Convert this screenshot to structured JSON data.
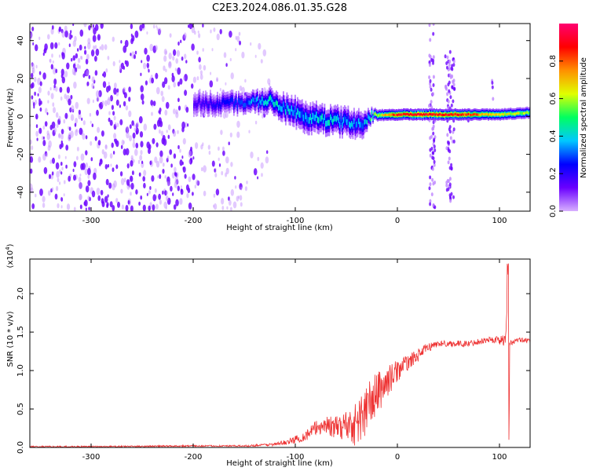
{
  "title": "C2E3.2024.086.01.35.G28",
  "chart_data": [
    {
      "type": "heatmap",
      "title": "C2E3.2024.086.01.35.G28",
      "xlabel": "Height of straight line (km)",
      "ylabel": "Frequency (Hz)",
      "xlim": [
        -360,
        130
      ],
      "ylim": [
        -50,
        49
      ],
      "x_ticks": [
        -300,
        -200,
        -100,
        0,
        100
      ],
      "y_ticks": [
        -40,
        -20,
        0,
        20,
        40
      ],
      "colorbar": {
        "label": "Normalized spectral amplitude",
        "range": [
          0.0,
          1.0
        ],
        "ticks": [
          "0.0",
          "0.2",
          "0.4",
          "0.6",
          "0.8"
        ],
        "colormap": [
          "#d8b0ff",
          "#6a00ff",
          "#0000ff",
          "#00c8ff",
          "#00ff60",
          "#e0ff00",
          "#ff9000",
          "#ff0000",
          "#ff0070"
        ]
      },
      "regions": [
        {
          "x": [
            -360,
            -200
          ],
          "freq_spread": 49,
          "amplitude": 0.05,
          "description_type": "noise"
        },
        {
          "x": [
            -200,
            -150
          ],
          "freq_spread": 49,
          "amplitude": 0.03
        },
        {
          "x": [
            -150,
            -125
          ],
          "freq_spread": 40,
          "amplitude": 0.02
        }
      ],
      "ridge": [
        {
          "x": -200,
          "center": 7,
          "width": 6,
          "peak": 0.15
        },
        {
          "x": -150,
          "center": 7,
          "width": 5,
          "peak": 0.3
        },
        {
          "x": -125,
          "center": 8,
          "width": 6,
          "peak": 0.4
        },
        {
          "x": -110,
          "center": 4,
          "width": 7,
          "peak": 0.35
        },
        {
          "x": -90,
          "center": 0,
          "width": 8,
          "peak": 0.35
        },
        {
          "x": -70,
          "center": -2,
          "width": 7,
          "peak": 0.4
        },
        {
          "x": -50,
          "center": -3,
          "width": 7,
          "peak": 0.35
        },
        {
          "x": -35,
          "center": -4,
          "width": 7,
          "peak": 0.3
        },
        {
          "x": -25,
          "center": 0.5,
          "width": 3,
          "peak": 0.5
        },
        {
          "x": 0,
          "center": 1,
          "width": 3,
          "peak": 0.85
        },
        {
          "x": 30,
          "center": 1,
          "width": 3,
          "peak": 0.9
        },
        {
          "x": 60,
          "center": 1,
          "width": 3,
          "peak": 0.85
        },
        {
          "x": 100,
          "center": 1,
          "width": 3,
          "peak": 0.65
        },
        {
          "x": 130,
          "center": 2,
          "width": 3,
          "peak": 0.55
        }
      ],
      "bursts": [
        {
          "x": [
            31,
            37
          ],
          "freq": [
            -48,
            49
          ]
        },
        {
          "x": [
            47,
            56
          ],
          "freq": [
            -45,
            35
          ]
        },
        {
          "x": [
            68,
            70
          ],
          "freq": [
            -3,
            8
          ]
        },
        {
          "x": [
            92,
            94
          ],
          "freq": [
            -3,
            20
          ]
        }
      ]
    },
    {
      "type": "line",
      "xlabel": "Height of straight line (km)",
      "ylabel": "SNR (10 * v/v)",
      "y_multiplier": "(x10^4)",
      "xlim": [
        -360,
        130
      ],
      "ylim": [
        0,
        2.45
      ],
      "x_ticks": [
        -300,
        -200,
        -100,
        0,
        100
      ],
      "y_ticks": [
        "0.0",
        "0.5",
        "1.0",
        "1.5",
        "2.0"
      ],
      "series": [
        {
          "color": "#ee3333",
          "x": [
            -360,
            -300,
            -200,
            -150,
            -120,
            -105,
            -90,
            -80,
            -70,
            -60,
            -50,
            -40,
            -30,
            -20,
            -10,
            0,
            10,
            20,
            30,
            40,
            50,
            60,
            70,
            80,
            90,
            100,
            105,
            107,
            108,
            109,
            110,
            115,
            120,
            130
          ],
          "y": [
            0.01,
            0.01,
            0.02,
            0.02,
            0.04,
            0.08,
            0.15,
            0.25,
            0.3,
            0.25,
            0.3,
            0.3,
            0.5,
            0.7,
            0.85,
            1.0,
            1.1,
            1.2,
            1.3,
            1.35,
            1.35,
            1.35,
            1.35,
            1.38,
            1.4,
            1.4,
            1.38,
            1.6,
            2.45,
            0.5,
            1.35,
            1.38,
            1.4,
            1.38
          ],
          "noise": [
            0.01,
            0.01,
            0.01,
            0.01,
            0.02,
            0.04,
            0.07,
            0.1,
            0.12,
            0.15,
            0.2,
            0.3,
            0.35,
            0.3,
            0.2,
            0.15,
            0.1,
            0.08,
            0.06,
            0.04,
            0.04,
            0.04,
            0.04,
            0.04,
            0.04,
            0.06,
            0.08,
            0.1,
            0.1,
            0.1,
            0.04,
            0.03,
            0.03,
            0.03
          ]
        }
      ]
    }
  ]
}
